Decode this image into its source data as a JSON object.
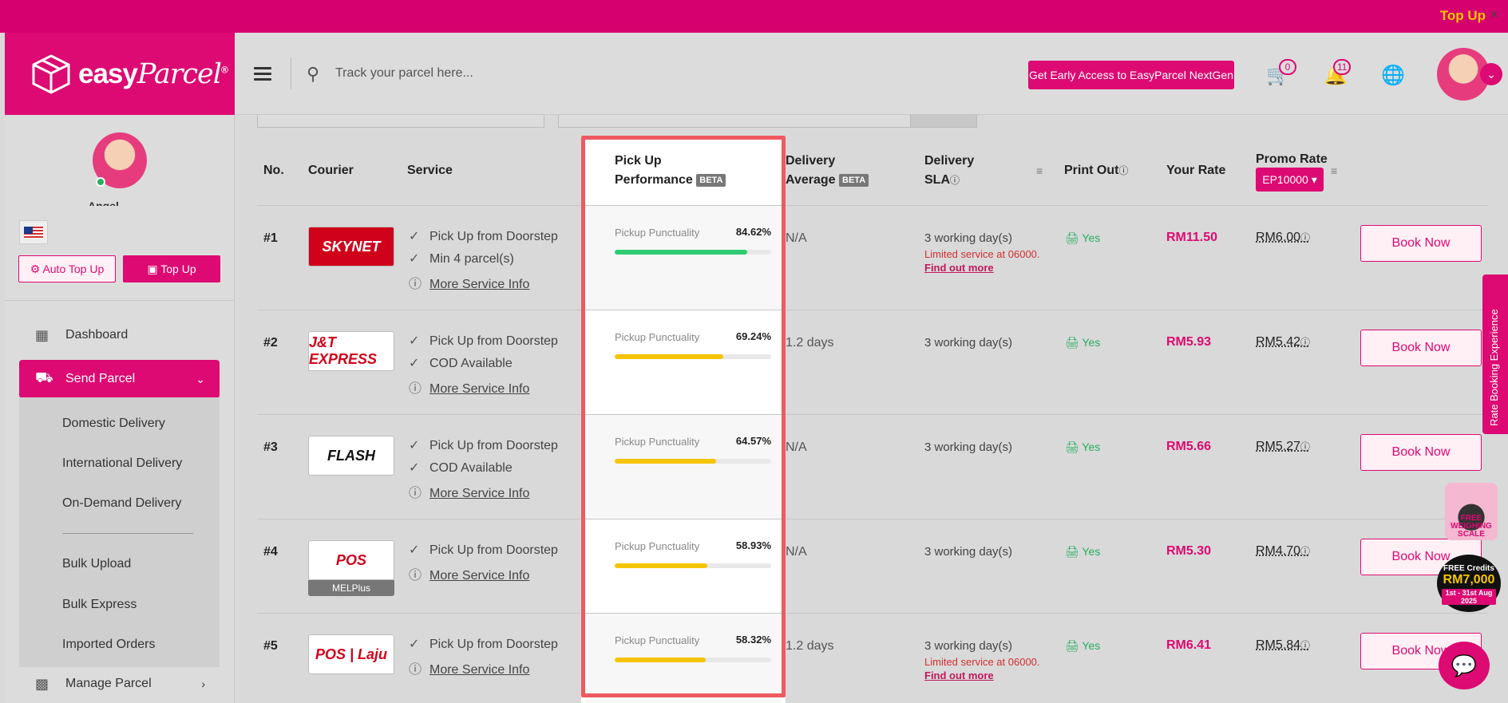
{
  "topbar": {
    "topup_link": "Top Up",
    "close": "×"
  },
  "brand": {
    "logo_main": "easy",
    "logo_script": "Parcel",
    "logo_reg": "®"
  },
  "header": {
    "search_placeholder": "Track your parcel here...",
    "early_access_label": "Get Early Access to EasyParcel NextGen",
    "cart_count": "0",
    "notif_count": "11",
    "icons": [
      "menu-icon",
      "search-icon",
      "cart-icon",
      "bell-icon",
      "globe-icon",
      "chevron-down-icon"
    ]
  },
  "sidebar": {
    "user_name": "Angel",
    "auto_topup_label": "Auto Top Up",
    "topup_label": "Top Up",
    "nav": [
      {
        "label": "Dashboard",
        "icon": "dashboard-icon"
      },
      {
        "label": "Send Parcel",
        "icon": "truck-icon",
        "active": true
      },
      {
        "label": "Manage Parcel",
        "icon": "boxes-icon"
      }
    ],
    "sub_items": [
      "Domestic Delivery",
      "International Delivery",
      "On-Demand Delivery",
      "Bulk Upload",
      "Bulk Express",
      "Imported Orders"
    ]
  },
  "table": {
    "headers": {
      "no": "No.",
      "courier": "Courier",
      "service": "Service",
      "pickup_l1": "Pick Up",
      "pickup_l2": "Performance",
      "delivery_l1": "Delivery",
      "delivery_l2": "Average",
      "sla_l1": "Delivery",
      "sla_l2": "SLA",
      "print": "Print Out",
      "rate": "Your Rate",
      "promo": "Promo Rate",
      "beta": "BETA",
      "promo_code": "EP10000"
    },
    "pickup_label": "Pickup Punctuality",
    "book_label": "Book Now",
    "rows": [
      {
        "no": "#1",
        "courier": "SKYNET",
        "services": [
          "Pick Up from Doorstep",
          "Min 4 parcel(s)"
        ],
        "more": "More Service Info",
        "pickup_pct": "84.62%",
        "pickup_val": 84.62,
        "bar_color": "#2ecc71",
        "delivery_avg": "N/A",
        "sla": "3 working day(s)",
        "sla_limit": "Limited service at 06000.",
        "sla_more": "Find out more",
        "print": "Yes",
        "rate": "RM11.50",
        "promo": "RM6.00"
      },
      {
        "no": "#2",
        "courier": "J&T EXPRESS",
        "services": [
          "Pick Up from Doorstep",
          "COD Available"
        ],
        "more": "More Service Info",
        "pickup_pct": "69.24%",
        "pickup_val": 69.24,
        "bar_color": "#f5c400",
        "delivery_avg": "1.2 days",
        "sla": "3 working day(s)",
        "sla_limit": "",
        "sla_more": "",
        "print": "Yes",
        "rate": "RM5.93",
        "promo": "RM5.42"
      },
      {
        "no": "#3",
        "courier": "FLASH",
        "services": [
          "Pick Up from Doorstep",
          "COD Available"
        ],
        "more": "More Service Info",
        "pickup_pct": "64.57%",
        "pickup_val": 64.57,
        "bar_color": "#f5c400",
        "delivery_avg": "N/A",
        "sla": "3 working day(s)",
        "sla_limit": "",
        "sla_more": "",
        "print": "Yes",
        "rate": "RM5.66",
        "promo": "RM5.27"
      },
      {
        "no": "#4",
        "courier": "POS",
        "courier_tag": "MELPlus",
        "services": [
          "Pick Up from Doorstep"
        ],
        "more": "More Service Info",
        "pickup_pct": "58.93%",
        "pickup_val": 58.93,
        "bar_color": "#f5c400",
        "delivery_avg": "N/A",
        "sla": "3 working day(s)",
        "sla_limit": "",
        "sla_more": "",
        "print": "Yes",
        "rate": "RM5.30",
        "promo": "RM4.70"
      },
      {
        "no": "#5",
        "courier": "POS | Laju",
        "services": [
          "Pick Up from Doorstep"
        ],
        "more": "More Service Info",
        "pickup_pct": "58.32%",
        "pickup_val": 58.32,
        "bar_color": "#f5c400",
        "delivery_avg": "1.2 days",
        "sla": "3 working day(s)",
        "sla_limit": "Limited service at 06000.",
        "sla_more": "Find out more",
        "print": "Yes",
        "rate": "RM6.41",
        "promo": "RM5.84"
      }
    ]
  },
  "floating": {
    "rate_tab": "Rate Booking Experience",
    "weigh": "FREE WEIGHING SCALE",
    "credits_a": "FREE Credits",
    "credits_b": "RM7,000",
    "credits_c": "1st - 31st Aug 2025"
  }
}
